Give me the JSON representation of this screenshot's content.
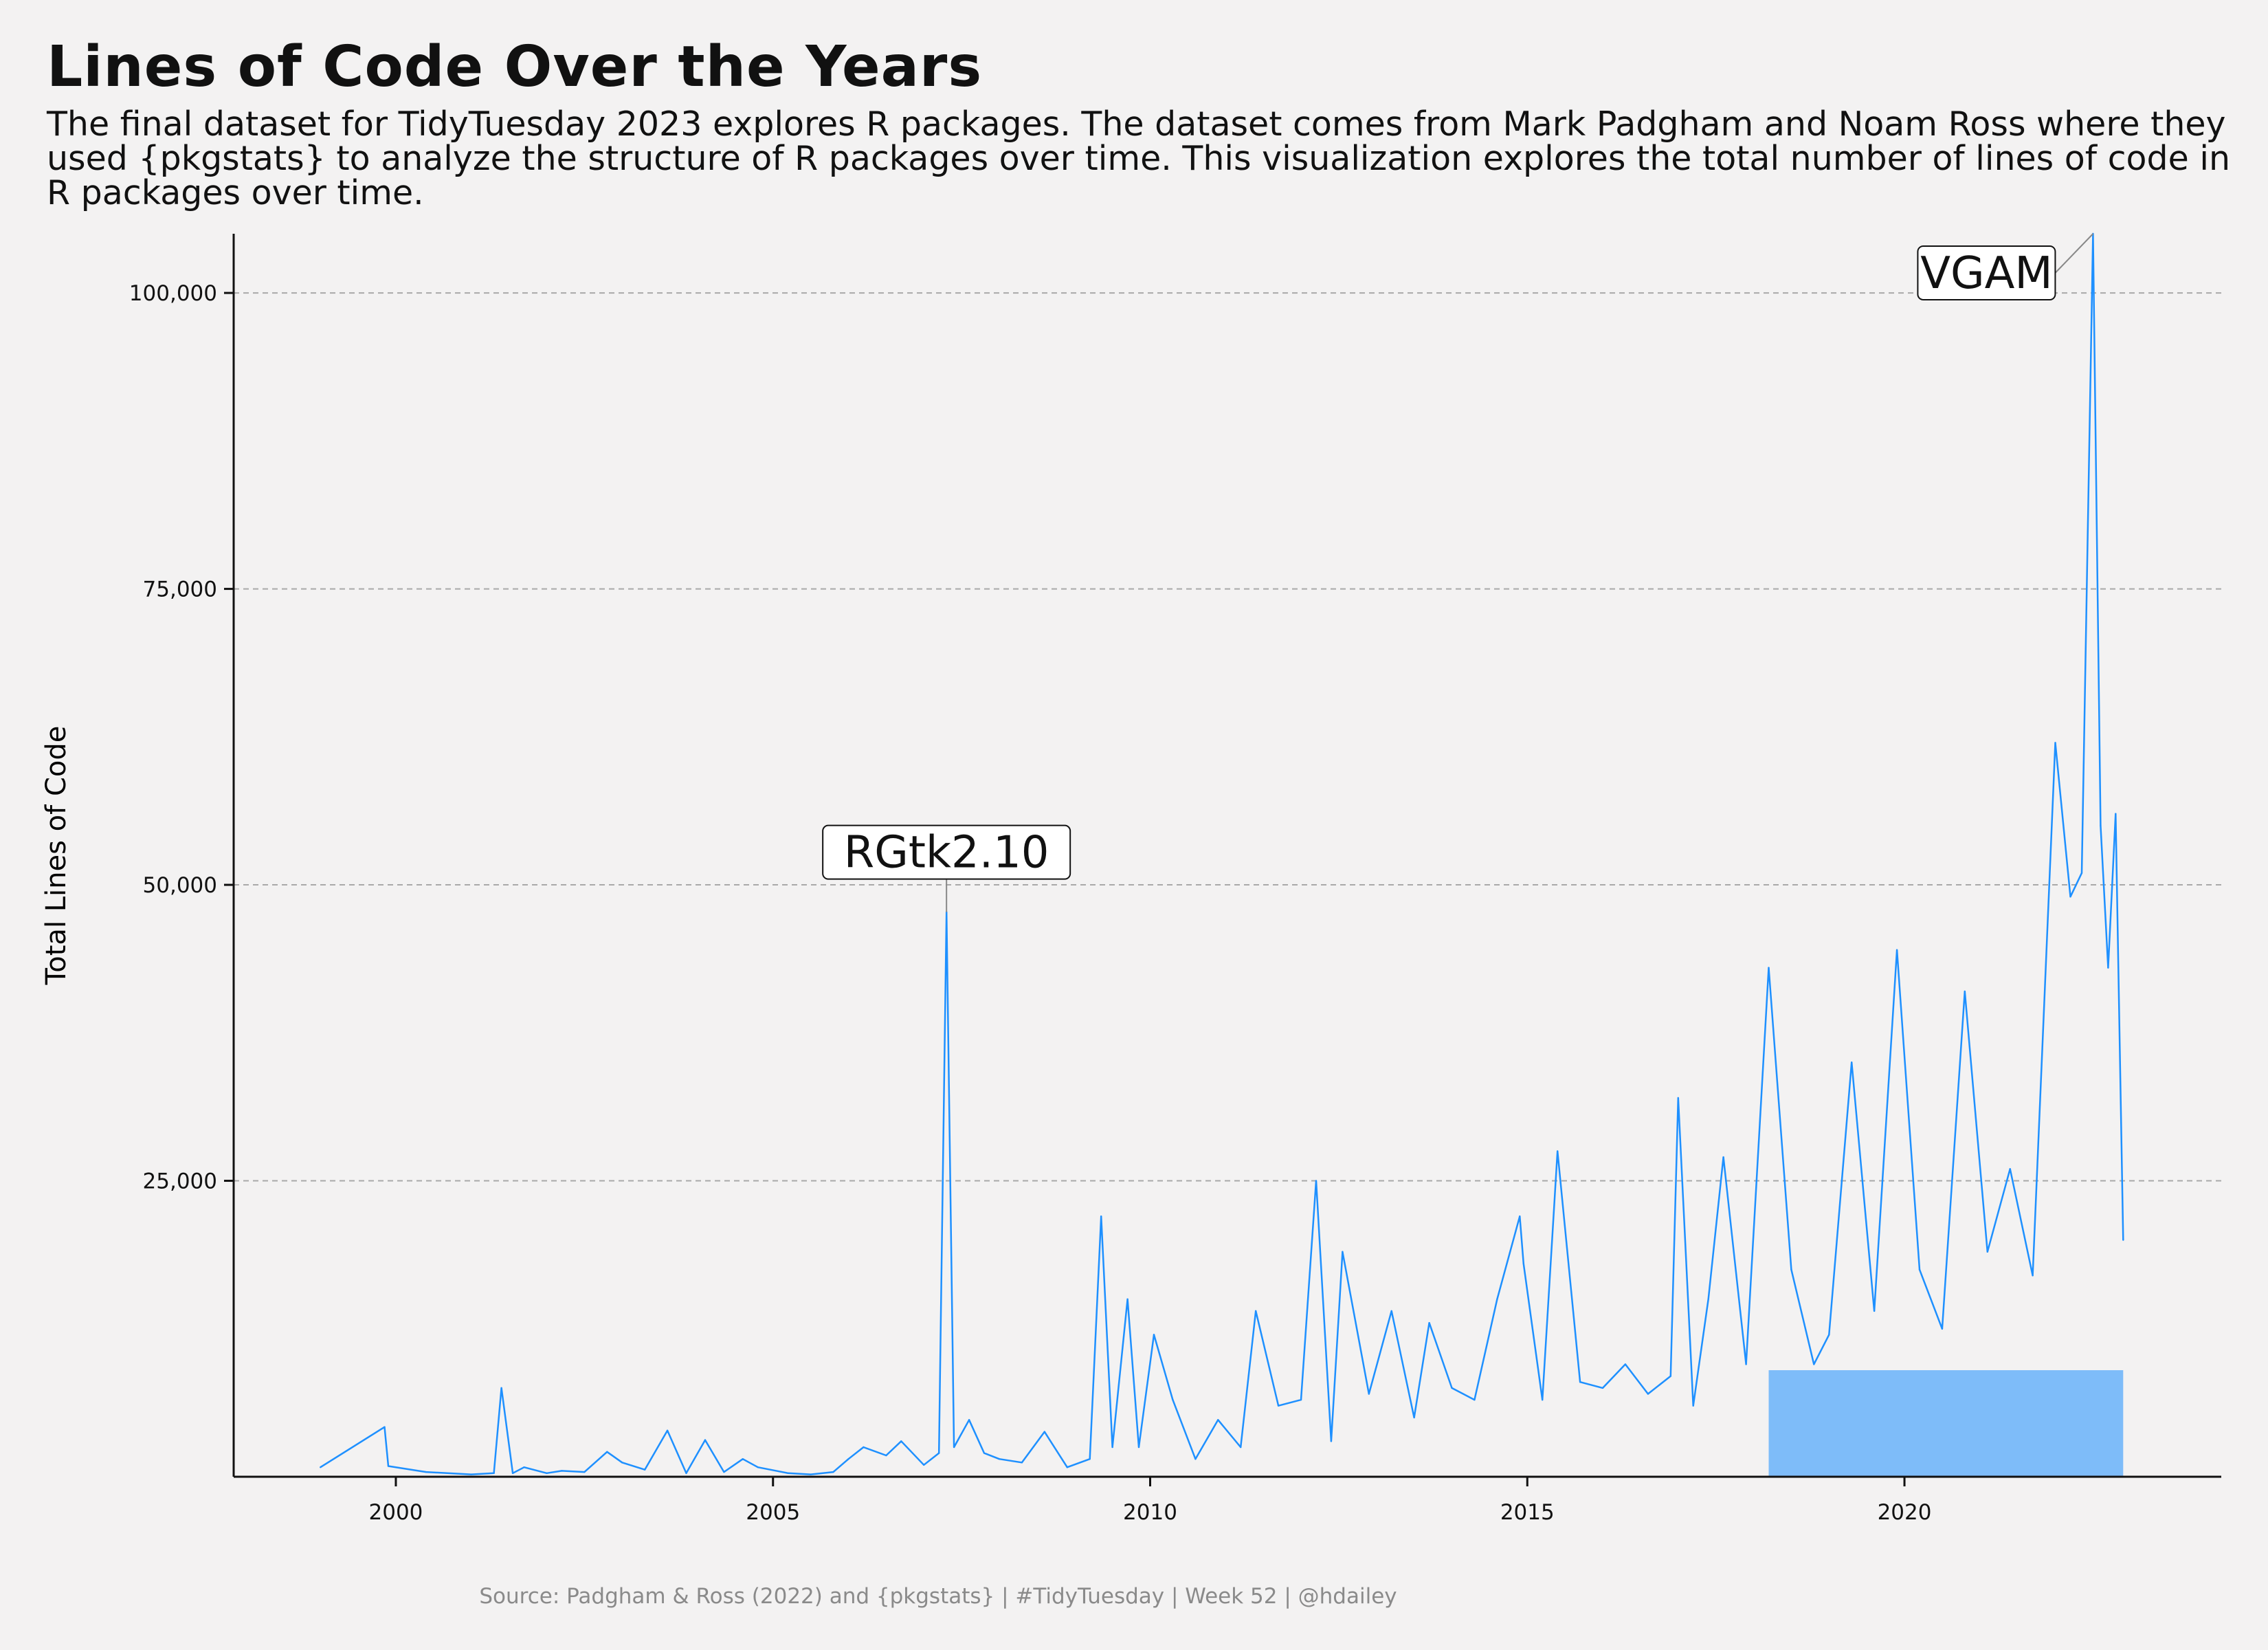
{
  "title": "Lines of Code Over the Years",
  "subtitle": "The final dataset for TidyTuesday 2023 explores R packages. The dataset comes from Mark Padgham and Noam Ross where they used {pkgstats} to analyze the structure of R packages over time. This visualization explores the total number of lines of code in R packages over time.",
  "caption": "Source: Padgham & Ross (2022) and {pkgstats} | #TidyTuesday | Week 52 | @hdailey",
  "colors": {
    "series": "#1e90ff",
    "background": "#f3f2f2",
    "grid": "#a9a9a9",
    "axis": "#111111"
  },
  "chart_data": {
    "type": "line",
    "title": "Lines of Code Over the Years",
    "xlabel": "",
    "ylabel": "Total Lines of Code",
    "xlim": [
      1997.85,
      2024.2
    ],
    "ylim": [
      0,
      105000
    ],
    "x_ticks": [
      2000,
      2005,
      2010,
      2015,
      2020
    ],
    "x_tick_labels": [
      "2000",
      "2005",
      "2010",
      "2015",
      "2020"
    ],
    "y_ticks": [
      25000,
      50000,
      75000,
      100000
    ],
    "y_tick_labels": [
      "25,000",
      "50,000",
      "75,000",
      "100,000"
    ],
    "grid": "horizontal dashed",
    "annotations": [
      {
        "label": "RGtk2.10",
        "x": 2007.3,
        "y": 47700
      },
      {
        "label": "VGAM",
        "x": 2022.5,
        "y": 105000
      }
    ],
    "series": [
      {
        "values_note": "",
        "x": [
          1999.0,
          1999.85,
          1999.9,
          2000.4,
          2001.0,
          2001.3,
          2001.4,
          2001.55,
          2001.7,
          2002.0,
          2002.2,
          2002.5,
          2002.8,
          2003.0,
          2003.3,
          2003.6,
          2003.85,
          2004.1,
          2004.35,
          2004.6,
          2004.8,
          2005.2,
          2005.5,
          2005.8,
          2006.0,
          2006.2,
          2006.5,
          2006.7,
          2007.0,
          2007.2,
          2007.3,
          2007.4,
          2007.6,
          2007.8,
          2008.0,
          2008.3,
          2008.6,
          2008.9,
          2009.2,
          2009.35,
          2009.5,
          2009.7,
          2009.85,
          2010.05,
          2010.3,
          2010.6,
          2010.9,
          2011.2,
          2011.4,
          2011.7,
          2012.0,
          2012.2,
          2012.4,
          2012.55,
          2012.9,
          2013.2,
          2013.5,
          2013.7,
          2014.0,
          2014.3,
          2014.6,
          2014.9,
          2014.95,
          2015.2,
          2015.4,
          2015.7,
          2016.0,
          2016.3,
          2016.6,
          2016.9,
          2017.0,
          2017.2,
          2017.4,
          2017.6,
          2017.9,
          2018.2,
          2018.5,
          2018.8,
          2019.0,
          2019.3,
          2019.6,
          2019.9,
          2020.2,
          2020.5,
          2020.8,
          2021.1,
          2021.4,
          2021.7,
          2022.0,
          2022.2,
          2022.35,
          2022.5,
          2022.6,
          2022.7,
          2022.8,
          2022.9
        ],
        "y": [
          800,
          4200,
          900,
          400,
          200,
          300,
          7500,
          300,
          800,
          300,
          500,
          400,
          2100,
          1200,
          600,
          3900,
          300,
          3100,
          400,
          1500,
          800,
          300,
          200,
          400,
          1500,
          2500,
          1800,
          3000,
          1000,
          2000,
          47700,
          2500,
          4800,
          2000,
          1500,
          1200,
          3800,
          800,
          1500,
          22000,
          2500,
          15000,
          2500,
          12000,
          6500,
          1500,
          4800,
          2500,
          14000,
          6000,
          6500,
          25000,
          3000,
          19000,
          7000,
          14000,
          5000,
          13000,
          7500,
          6500,
          15000,
          22000,
          18000,
          6500,
          27500,
          8000,
          7500,
          9500,
          7000,
          8500,
          32000,
          6000,
          15000,
          27000,
          9500,
          43000,
          17500,
          9500,
          12000,
          35000,
          14000,
          44500,
          17500,
          12500,
          41000,
          19000,
          26000,
          17000,
          62000,
          49000,
          51000,
          105000,
          55000,
          43000,
          56000,
          20000
        ]
      }
    ]
  }
}
